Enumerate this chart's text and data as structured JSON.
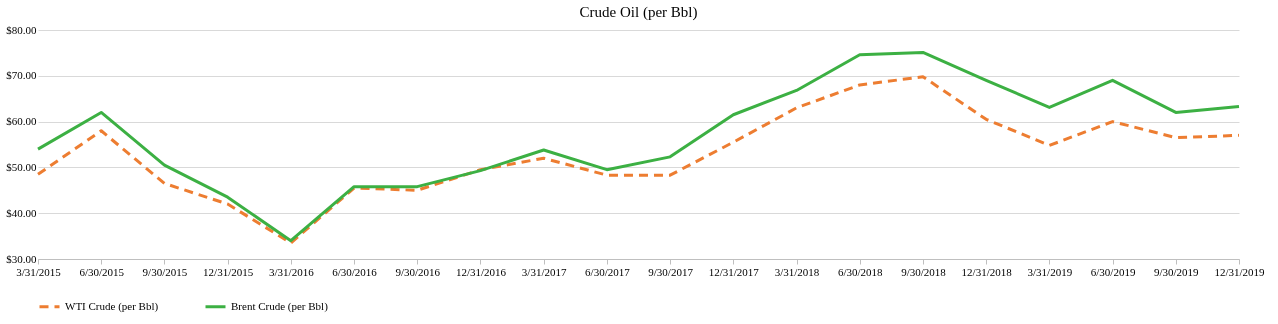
{
  "chart_data": {
    "type": "line",
    "title": "Crude Oil (per Bbl)",
    "categories": [
      "3/31/2015",
      "6/30/2015",
      "9/30/2015",
      "12/31/2015",
      "3/31/2016",
      "6/30/2016",
      "9/30/2016",
      "12/31/2016",
      "3/31/2017",
      "6/30/2017",
      "9/30/2017",
      "12/31/2017",
      "3/31/2018",
      "6/30/2018",
      "9/30/2018",
      "12/31/2018",
      "3/31/2019",
      "6/30/2019",
      "9/30/2019",
      "12/31/2019"
    ],
    "series": [
      {
        "name": "WTI Crude (per Bbl)",
        "color": "#ed7d31",
        "line_style": "dashed",
        "values": [
          48.5,
          58,
          46.5,
          42,
          33.5,
          45.5,
          45,
          49.5,
          52,
          48.3,
          48.3,
          55.5,
          63,
          68,
          69.8,
          60.5,
          54.8,
          60,
          56.5,
          57
        ]
      },
      {
        "name": "Brent Crude (per Bbl)",
        "color": "#3cb043",
        "line_style": "solid",
        "values": [
          54,
          62,
          50.5,
          43.5,
          34,
          45.8,
          45.8,
          49.3,
          53.8,
          49.5,
          52.3,
          61.5,
          66.8,
          74.6,
          75.1,
          69,
          63.1,
          69,
          62,
          63.3
        ]
      }
    ],
    "ylim": [
      30,
      80
    ],
    "yticks": [
      {
        "value": 30,
        "label": "$30.00"
      },
      {
        "value": 40,
        "label": "$40.00"
      },
      {
        "value": 50,
        "label": "$50.00"
      },
      {
        "value": 60,
        "label": "$60.00"
      },
      {
        "value": 70,
        "label": "$70.00"
      },
      {
        "value": 80,
        "label": "$80.00"
      }
    ],
    "grid": "y",
    "legend": "bottom",
    "marker": "none"
  }
}
